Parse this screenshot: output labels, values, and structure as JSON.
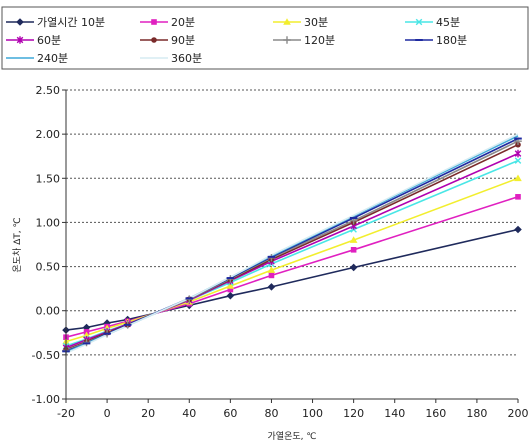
{
  "chart_data": {
    "type": "line",
    "xlabel": "가열온도, ℃",
    "ylabel": "온도차 ΔT, ℃",
    "xlim": [
      -20,
      200
    ],
    "ylim": [
      -1.0,
      2.5
    ],
    "x_ticks": [
      "-20",
      "0",
      "20",
      "40",
      "60",
      "80",
      "100",
      "120",
      "140",
      "160",
      "180",
      "200"
    ],
    "y_ticks": [
      "-1.00",
      "-0.50",
      "0.00",
      "0.50",
      "1.00",
      "1.50",
      "2.00",
      "2.50"
    ],
    "grid": "horizontal dotted",
    "legend_position": "top",
    "x": [
      -20,
      -10,
      0,
      10,
      40,
      60,
      80,
      120,
      200
    ],
    "series": [
      {
        "name": "가열시간 10분",
        "color": "#1f2a5c",
        "marker": "diamond",
        "values": [
          -0.22,
          -0.19,
          -0.14,
          -0.1,
          0.06,
          0.17,
          0.27,
          0.49,
          0.92
        ]
      },
      {
        "name": "20분",
        "color": "#e020c0",
        "marker": "square",
        "values": [
          -0.3,
          -0.24,
          -0.18,
          -0.12,
          0.08,
          0.24,
          0.4,
          0.69,
          1.29
        ]
      },
      {
        "name": "30분",
        "color": "#f2ee2e",
        "marker": "triangle",
        "values": [
          -0.35,
          -0.28,
          -0.2,
          -0.13,
          0.1,
          0.28,
          0.46,
          0.8,
          1.5
        ]
      },
      {
        "name": "45분",
        "color": "#49e6e6",
        "marker": "cross",
        "values": [
          -0.4,
          -0.32,
          -0.23,
          -0.15,
          0.12,
          0.32,
          0.53,
          0.92,
          1.7
        ]
      },
      {
        "name": "60분",
        "color": "#b000b0",
        "marker": "star",
        "values": [
          -0.42,
          -0.33,
          -0.24,
          -0.15,
          0.12,
          0.34,
          0.56,
          0.96,
          1.78
        ]
      },
      {
        "name": "90분",
        "color": "#7a2a2a",
        "marker": "circle",
        "values": [
          -0.44,
          -0.35,
          -0.25,
          -0.16,
          0.13,
          0.35,
          0.58,
          1.0,
          1.88
        ]
      },
      {
        "name": "120분",
        "color": "#8a8a8a",
        "marker": "plus",
        "values": [
          -0.45,
          -0.36,
          -0.26,
          -0.16,
          0.13,
          0.36,
          0.6,
          1.02,
          1.92
        ]
      },
      {
        "name": "180분",
        "color": "#1f2aa0",
        "marker": "dash",
        "values": [
          -0.46,
          -0.37,
          -0.26,
          -0.16,
          0.14,
          0.37,
          0.61,
          1.05,
          1.95
        ]
      },
      {
        "name": "240분",
        "color": "#3fa8d8",
        "marker": "none",
        "values": [
          -0.47,
          -0.37,
          -0.27,
          -0.17,
          0.14,
          0.38,
          0.62,
          1.07,
          1.98
        ]
      },
      {
        "name": "360분",
        "color": "#d6ecf2",
        "marker": "none",
        "values": [
          -0.48,
          -0.38,
          -0.27,
          -0.17,
          0.14,
          0.38,
          0.63,
          1.08,
          2.0
        ]
      }
    ]
  }
}
